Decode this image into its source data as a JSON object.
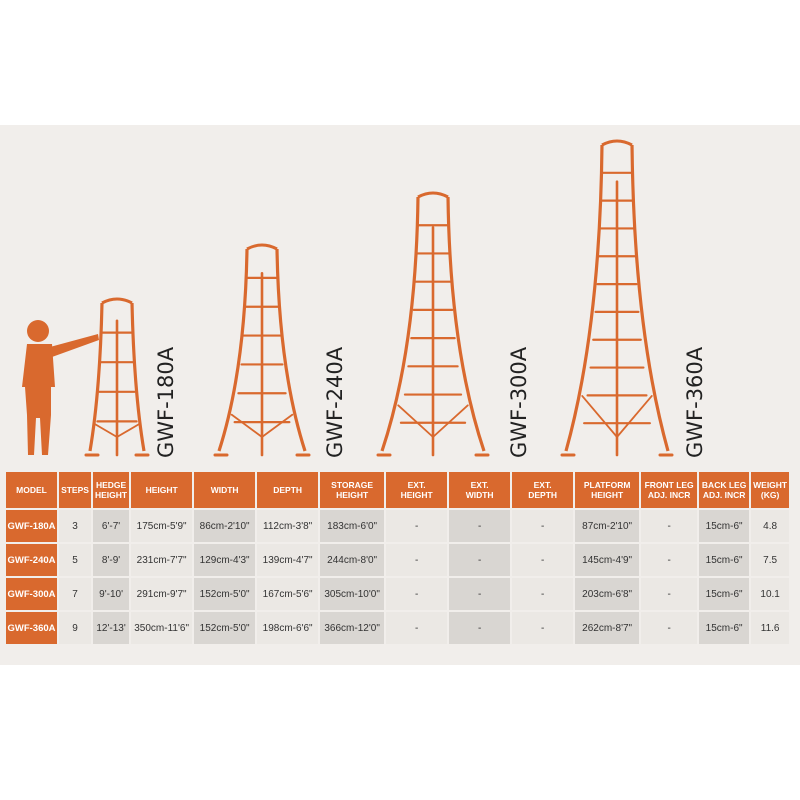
{
  "accent_color": "#d9692e",
  "ladders": [
    {
      "model": "GWF-180A",
      "steps": 3
    },
    {
      "model": "GWF-240A",
      "steps": 5
    },
    {
      "model": "GWF-300A",
      "steps": 7
    },
    {
      "model": "GWF-360A",
      "steps": 9
    }
  ],
  "table": {
    "headers": [
      [
        "MODEL"
      ],
      [
        "STEPS"
      ],
      [
        "HEDGE",
        "HEIGHT"
      ],
      [
        "HEIGHT"
      ],
      [
        "WIDTH"
      ],
      [
        "DEPTH"
      ],
      [
        "STORAGE",
        "HEIGHT"
      ],
      [
        "EXT.",
        "HEIGHT"
      ],
      [
        "EXT.",
        "WIDTH"
      ],
      [
        "EXT.",
        "DEPTH"
      ],
      [
        "PLATFORM",
        "HEIGHT"
      ],
      [
        "FRONT LEG",
        "ADJ. INCR"
      ],
      [
        "BACK LEG",
        "ADJ. INCR"
      ],
      [
        "WEIGHT",
        "(KG)"
      ]
    ],
    "rows": [
      [
        "GWF-180A",
        "3",
        "6'-7'",
        "175cm-5'9\"",
        "86cm-2'10\"",
        "112cm-3'8\"",
        "183cm-6'0\"",
        "-",
        "-",
        "-",
        "87cm-2'10\"",
        "-",
        "15cm-6\"",
        "4.8"
      ],
      [
        "GWF-240A",
        "5",
        "8'-9'",
        "231cm-7'7\"",
        "129cm-4'3\"",
        "139cm-4'7\"",
        "244cm-8'0\"",
        "-",
        "-",
        "-",
        "145cm-4'9\"",
        "-",
        "15cm-6\"",
        "7.5"
      ],
      [
        "GWF-300A",
        "7",
        "9'-10'",
        "291cm-9'7\"",
        "152cm-5'0\"",
        "167cm-5'6\"",
        "305cm-10'0\"",
        "-",
        "-",
        "-",
        "203cm-6'8\"",
        "-",
        "15cm-6\"",
        "10.1"
      ],
      [
        "GWF-360A",
        "9",
        "12'-13'",
        "350cm-11'6\"",
        "152cm-5'0\"",
        "198cm-6'6\"",
        "366cm-12'0\"",
        "-",
        "-",
        "-",
        "262cm-8'7\"",
        "-",
        "15cm-6\"",
        "11.6"
      ]
    ]
  }
}
